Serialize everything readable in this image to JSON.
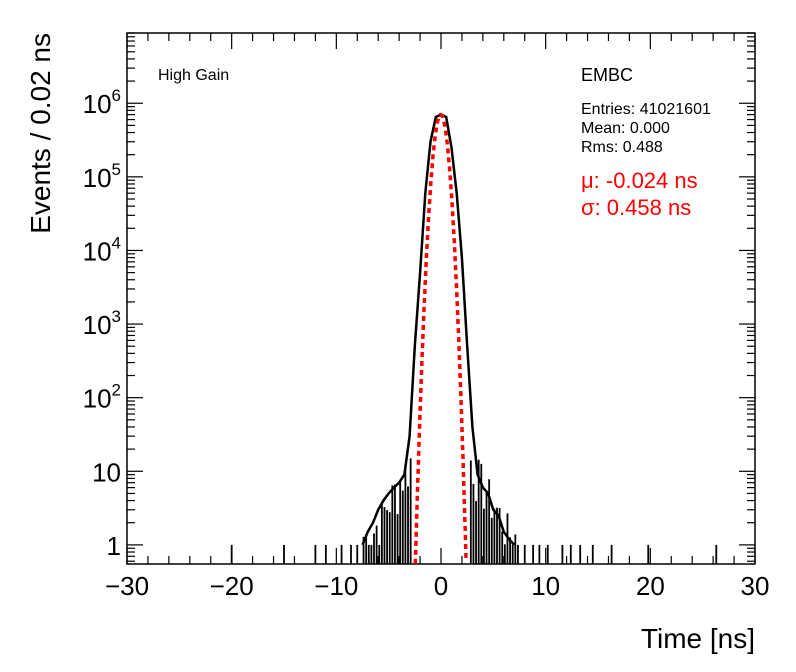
{
  "chart_data": {
    "type": "line",
    "title": "",
    "xlabel": "Time [ns]",
    "ylabel": "Events / 0.02 ns",
    "xlim": [
      -30,
      30
    ],
    "ylim": [
      0.55,
      9000000
    ],
    "y_scale": "log",
    "grid": false,
    "x_ticks": [
      {
        "value": -30,
        "label": "−30"
      },
      {
        "value": -20,
        "label": "−20"
      },
      {
        "value": -10,
        "label": "−10"
      },
      {
        "value": 0,
        "label": "0"
      },
      {
        "value": 10,
        "label": "10"
      },
      {
        "value": 20,
        "label": "20"
      },
      {
        "value": 30,
        "label": "30"
      }
    ],
    "y_ticks": [
      {
        "value": 1,
        "base": "1",
        "exp": ""
      },
      {
        "value": 10,
        "base": "10",
        "exp": ""
      },
      {
        "value": 100,
        "base": "10",
        "exp": "2"
      },
      {
        "value": 1000,
        "base": "10",
        "exp": "3"
      },
      {
        "value": 10000,
        "base": "10",
        "exp": "4"
      },
      {
        "value": 100000,
        "base": "10",
        "exp": "5"
      },
      {
        "value": 1000000,
        "base": "10",
        "exp": "6"
      }
    ],
    "series": [
      {
        "color": "#000000",
        "style": "histogram",
        "x": [
          -7.5,
          -7.0,
          -6.5,
          -6.0,
          -5.5,
          -5.0,
          -4.5,
          -4.0,
          -3.5,
          -3.0,
          -2.5,
          -2.0,
          -1.5,
          -1.0,
          -0.5,
          0.0,
          0.5,
          1.0,
          1.5,
          2.0,
          2.5,
          3.0,
          3.5,
          4.0,
          4.5,
          5.0,
          5.5,
          6.0,
          6.5,
          7.0
        ],
        "y": [
          1,
          1.5,
          2,
          3,
          4,
          5,
          6,
          7,
          9,
          30,
          500,
          5000,
          60000,
          300000,
          650000,
          700000,
          650000,
          250000,
          60000,
          8000,
          500,
          40,
          9,
          6,
          5,
          3,
          2.5,
          1.5,
          1.2,
          1
        ]
      },
      {
        "color": "#ff0000",
        "style": "dashed",
        "fit": "gaussian",
        "mean": -0.024,
        "sigma": 0.458,
        "amplitude": 700000
      }
    ],
    "sparse_entries_x": [
      -20,
      -15,
      -12,
      -11,
      -9.5,
      -8.6,
      -8,
      8,
      8.8,
      9.4,
      10.2,
      11.6,
      12.4,
      13.3,
      14.5,
      16.3,
      19.8,
      26.3
    ],
    "legend_placement": "none"
  },
  "annotations": {
    "gain": "High Gain",
    "detector": "EMBC",
    "entries": "Entries: 41021601",
    "mean": "Mean: 0.000",
    "rms": "Rms: 0.488",
    "fit_mu": "μ: -0.024 ns",
    "fit_sigma": "σ: 0.458 ns"
  },
  "colors": {
    "data": "#000000",
    "fit": "#ff0000",
    "frame": "#000000"
  }
}
